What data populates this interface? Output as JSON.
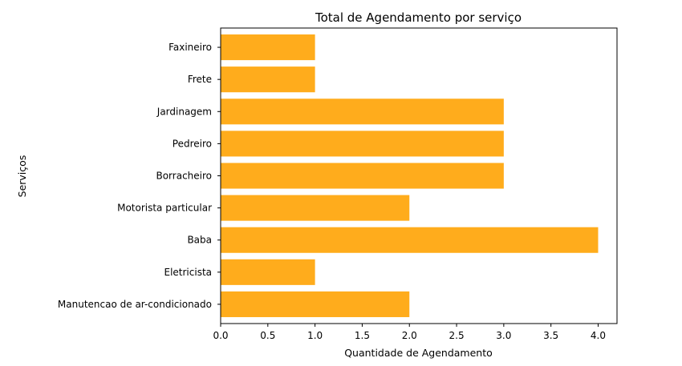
{
  "chart_data": {
    "type": "bar",
    "orientation": "horizontal",
    "title": "Total de Agendamento por serviço",
    "xlabel": "Quantidade de Agendamento",
    "ylabel": "Serviços",
    "categories": [
      "Manutencao de ar-condicionado",
      "Eletricista",
      "Baba",
      "Motorista particular",
      "Borracheiro",
      "Pedreiro",
      "Jardinagem",
      "Frete",
      "Faxineiro"
    ],
    "values": [
      2,
      1,
      4,
      2,
      3,
      3,
      3,
      1,
      1
    ],
    "xlim": [
      0,
      4.2
    ],
    "xticks": [
      "0.0",
      "0.5",
      "1.0",
      "1.5",
      "2.0",
      "2.5",
      "3.0",
      "3.5",
      "4.0"
    ],
    "grid": false,
    "bar_color": "#ffac1c"
  }
}
